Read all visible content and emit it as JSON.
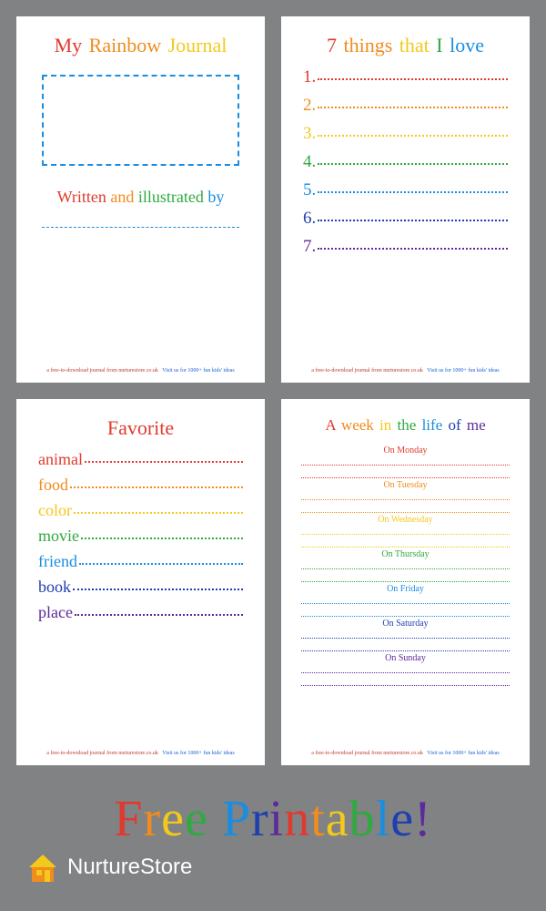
{
  "colors": {
    "rainbow": [
      "#e03a2e",
      "#f18c1e",
      "#f3c91c",
      "#2faa3f",
      "#1a8de0",
      "#1f3fb0",
      "#5c2a9b"
    ],
    "bg": "#808284",
    "page": "#ffffff",
    "footer_red": "#c0392b",
    "footer_blue": "#1a5fd6",
    "brand_orange": "#f18c1e",
    "brand_yellow": "#f3c91c",
    "brand_text": "#ffffff"
  },
  "page1": {
    "title_words": [
      "My",
      "Rainbow",
      "Journal"
    ],
    "title_colors": [
      "#e03a2e",
      "#f18c1e",
      "#f3c91c"
    ],
    "subtitle_words": [
      "Written",
      "and",
      "illustrated",
      "by"
    ],
    "subtitle_colors": [
      "#e03a2e",
      "#f18c1e",
      "#2faa3f",
      "#1a8de0"
    ],
    "box_border": "#1a8de0"
  },
  "page2": {
    "title_words": [
      "7",
      "things",
      "that",
      "I",
      "love"
    ],
    "title_colors": [
      "#e03a2e",
      "#f18c1e",
      "#f3c91c",
      "#2faa3f",
      "#1a8de0"
    ],
    "items": [
      {
        "n": "1",
        "color": "#e03a2e"
      },
      {
        "n": "2",
        "color": "#f18c1e"
      },
      {
        "n": "3",
        "color": "#f3c91c"
      },
      {
        "n": "4",
        "color": "#2faa3f"
      },
      {
        "n": "5",
        "color": "#1a8de0"
      },
      {
        "n": "6",
        "color": "#1f3fb0"
      },
      {
        "n": "7",
        "color": "#5c2a9b"
      }
    ]
  },
  "page3": {
    "title": "Favorite",
    "title_color": "#e03a2e",
    "items": [
      {
        "label": "animal",
        "color": "#e03a2e"
      },
      {
        "label": "food",
        "color": "#f18c1e"
      },
      {
        "label": "color",
        "color": "#f3c91c"
      },
      {
        "label": "movie",
        "color": "#2faa3f"
      },
      {
        "label": "friend",
        "color": "#1a8de0"
      },
      {
        "label": "book",
        "color": "#1f3fb0"
      },
      {
        "label": "place",
        "color": "#5c2a9b"
      }
    ]
  },
  "page4": {
    "title_words": [
      "A",
      "week",
      "in",
      "the",
      "life",
      "of",
      "me"
    ],
    "title_colors": [
      "#e03a2e",
      "#f18c1e",
      "#f3c91c",
      "#2faa3f",
      "#1a8de0",
      "#1f3fb0",
      "#5c2a9b"
    ],
    "days": [
      {
        "label": "On Monday",
        "color": "#e03a2e"
      },
      {
        "label": "On Tuesday",
        "color": "#f18c1e"
      },
      {
        "label": "On Wednesday",
        "color": "#f3c91c"
      },
      {
        "label": "On Thursday",
        "color": "#2faa3f"
      },
      {
        "label": "On Friday",
        "color": "#1a8de0"
      },
      {
        "label": "On Saturday",
        "color": "#1f3fb0"
      },
      {
        "label": "On Sunday",
        "color": "#5c2a9b"
      }
    ]
  },
  "footer": {
    "left": "a free-to-download journal from nurturestore.co.uk",
    "right": "Visit us for 1000+ fun kids' ideas"
  },
  "banner": {
    "words": [
      "Free",
      "Printable!"
    ],
    "letter_colors": [
      "#e03a2e",
      "#f18c1e",
      "#f3c91c",
      "#2faa3f",
      "#1a8de0",
      "#1f3fb0",
      "#5c2a9b"
    ],
    "brand": "NurtureStore"
  }
}
